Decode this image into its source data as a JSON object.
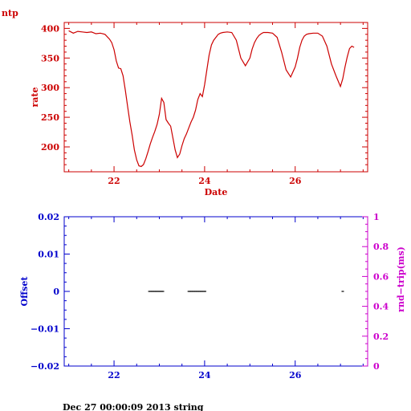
{
  "corner_label": "ntp",
  "footer_text": "Dec 27 00:00:09 2013 string",
  "colors": {
    "top_axes": "#cc0000",
    "rate_line": "#cc0000",
    "bottom_axes": "#0000cc",
    "right_axis": "#cc00cc",
    "offset_marks": "#000000"
  },
  "chart_data": [
    {
      "type": "line",
      "xlabel": "Date",
      "ylabel": "rate",
      "xlim": [
        20.9,
        27.6
      ],
      "ylim": [
        158,
        410
      ],
      "x_ticks": [
        22,
        24,
        26
      ],
      "x_tick_labels": [
        "22",
        "24",
        "26"
      ],
      "y_ticks": [
        200,
        250,
        300,
        350,
        400
      ],
      "y_tick_labels": [
        "200",
        "250",
        "300",
        "350",
        "400"
      ],
      "series": [
        {
          "x": [
            21.0,
            21.1,
            21.2,
            21.3,
            21.4,
            21.5,
            21.6,
            21.7,
            21.8,
            21.9,
            21.95,
            22.0,
            22.05,
            22.1,
            22.15,
            22.2,
            22.25,
            22.3,
            22.35,
            22.4,
            22.45,
            22.5,
            22.55,
            22.6,
            22.65,
            22.7,
            22.75,
            22.8,
            22.85,
            22.9,
            22.95,
            23.0,
            23.05,
            23.1,
            23.15,
            23.2,
            23.25,
            23.3,
            23.35,
            23.4,
            23.45,
            23.5,
            23.55,
            23.6,
            23.65,
            23.7,
            23.75,
            23.8,
            23.85,
            23.9,
            23.95,
            24.0,
            24.05,
            24.1,
            24.15,
            24.2,
            24.25,
            24.3,
            24.35,
            24.4,
            24.5,
            24.6,
            24.7,
            24.8,
            24.9,
            25.0,
            25.05,
            25.1,
            25.15,
            25.2,
            25.25,
            25.3,
            25.4,
            25.5,
            25.6,
            25.7,
            25.8,
            25.9,
            26.0,
            26.05,
            26.1,
            26.15,
            26.2,
            26.25,
            26.3,
            26.4,
            26.5,
            26.6,
            26.7,
            26.8,
            26.9,
            27.0,
            27.05,
            27.1,
            27.15,
            27.2,
            27.25,
            27.3
          ],
          "y": [
            396,
            392,
            395,
            394,
            393,
            394,
            391,
            392,
            390,
            382,
            376,
            364,
            345,
            333,
            332,
            320,
            295,
            268,
            242,
            220,
            195,
            178,
            168,
            167,
            170,
            180,
            192,
            205,
            216,
            226,
            238,
            255,
            282,
            275,
            246,
            240,
            235,
            215,
            195,
            182,
            188,
            202,
            214,
            222,
            232,
            242,
            250,
            262,
            280,
            290,
            285,
            305,
            330,
            355,
            372,
            380,
            385,
            390,
            392,
            393,
            394,
            393,
            380,
            350,
            337,
            350,
            365,
            376,
            383,
            388,
            391,
            393,
            393,
            392,
            385,
            360,
            330,
            318,
            335,
            350,
            368,
            380,
            387,
            390,
            391,
            392,
            392,
            387,
            370,
            340,
            320,
            302,
            315,
            335,
            352,
            366,
            370,
            368
          ]
        }
      ]
    },
    {
      "type": "scatter",
      "ylabel": "Offset",
      "y2label": "rnd−trip(ms)",
      "xlim": [
        20.9,
        27.6
      ],
      "ylim": [
        -0.02,
        0.02
      ],
      "y2lim": [
        0,
        1
      ],
      "x_ticks": [
        22,
        24,
        26
      ],
      "x_tick_labels": [
        "22",
        "24",
        "26"
      ],
      "y_ticks": [
        -0.02,
        -0.01,
        0,
        0.01,
        0.02
      ],
      "y_tick_labels": [
        "−0.02",
        "−0.01",
        "0",
        "0.01",
        "0.02"
      ],
      "y2_ticks": [
        0,
        0.2,
        0.4,
        0.6,
        0.8,
        1
      ],
      "y2_tick_labels": [
        "0",
        "0.2",
        "0.4",
        "0.6",
        "0.8",
        "1"
      ],
      "series": [
        {
          "x": [
            22.78,
            22.81,
            22.84,
            22.87,
            22.9,
            22.93,
            22.96,
            22.99,
            23.02,
            23.05,
            23.08,
            23.65,
            23.68,
            23.71,
            23.74,
            23.77,
            23.8,
            23.83,
            23.86,
            23.89,
            23.92,
            23.95,
            23.98,
            24.01,
            27.05
          ],
          "y": [
            0,
            0,
            0,
            0,
            0,
            0,
            0,
            0,
            0,
            0,
            0,
            0,
            0,
            0,
            0,
            0,
            0,
            0,
            0,
            0,
            0,
            0,
            0,
            0,
            0
          ]
        }
      ]
    }
  ]
}
